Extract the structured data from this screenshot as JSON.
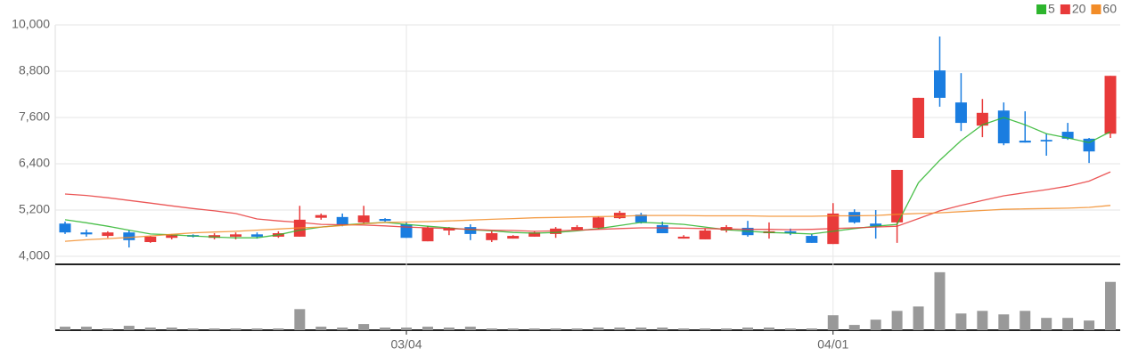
{
  "chart_data": {
    "type": "candlestick",
    "categories": [
      null,
      null,
      null,
      null,
      null,
      null,
      null,
      null,
      null,
      null,
      null,
      null,
      null,
      null,
      null,
      null,
      "03/04",
      null,
      null,
      null,
      null,
      null,
      null,
      null,
      null,
      null,
      null,
      null,
      null,
      null,
      null,
      null,
      null,
      null,
      null,
      null,
      "04/01",
      null,
      null,
      null,
      null,
      null,
      null,
      null,
      null,
      null,
      null,
      null,
      null,
      null
    ],
    "open": [
      4850,
      4620,
      4530,
      4620,
      4370,
      4480,
      4550,
      4480,
      4510,
      4570,
      4510,
      4510,
      5000,
      5020,
      4880,
      4970,
      4830,
      4390,
      4670,
      4760,
      4420,
      4460,
      4510,
      4580,
      4690,
      4740,
      4990,
      5080,
      4810,
      4460,
      4440,
      4670,
      4740,
      4600,
      4650,
      4530,
      4320,
      5150,
      4850,
      4880,
      7070,
      8820,
      7990,
      7390,
      7780,
      7000,
      7020,
      7230,
      7050,
      7180
    ],
    "high": [
      4900,
      4690,
      4650,
      4670,
      4530,
      4580,
      4570,
      4600,
      4620,
      4620,
      4650,
      5310,
      5110,
      5110,
      5310,
      4990,
      4880,
      4790,
      4760,
      4830,
      4650,
      4550,
      4650,
      4760,
      4810,
      5040,
      5180,
      5130,
      4900,
      4550,
      4720,
      4810,
      4920,
      4880,
      4720,
      4580,
      5380,
      5220,
      5200,
      6240,
      8110,
      9700,
      8750,
      8080,
      7990,
      7760,
      7180,
      7460,
      7070,
      8680
    ],
    "low": [
      4580,
      4510,
      4480,
      4230,
      4350,
      4440,
      4490,
      4440,
      4440,
      4460,
      4480,
      4510,
      4950,
      4780,
      4850,
      4900,
      4480,
      4390,
      4550,
      4420,
      4370,
      4460,
      4510,
      4480,
      4690,
      4710,
      4970,
      4850,
      4600,
      4460,
      4440,
      4620,
      4510,
      4460,
      4550,
      4350,
      4320,
      4850,
      4460,
      4350,
      7070,
      7880,
      7250,
      7090,
      6880,
      6950,
      6610,
      7020,
      6420,
      7070
    ],
    "close": [
      4620,
      4570,
      4620,
      4420,
      4510,
      4550,
      4510,
      4550,
      4570,
      4510,
      4600,
      4950,
      5070,
      4830,
      5060,
      4920,
      4480,
      4740,
      4740,
      4580,
      4600,
      4530,
      4620,
      4720,
      4760,
      5010,
      5130,
      4880,
      4600,
      4510,
      4670,
      4760,
      4550,
      4650,
      4600,
      4350,
      5110,
      4880,
      4780,
      6240,
      8110,
      8110,
      7460,
      7720,
      6930,
      6950,
      6980,
      7050,
      6720,
      8680
    ],
    "up_color": "#e83a3a",
    "down_color": "#1a7de0",
    "ylim": [
      3800,
      10000
    ],
    "yticks": [
      {
        "value": 4000,
        "label": "4,000"
      },
      {
        "value": 5200,
        "label": "5,200"
      },
      {
        "value": 6400,
        "label": "6,400"
      },
      {
        "value": 7600,
        "label": "7,600"
      },
      {
        "value": 8800,
        "label": "8,800"
      },
      {
        "value": 10000,
        "label": "10,000"
      }
    ],
    "grid": true,
    "legend": "top-right",
    "series": [
      {
        "name": "5",
        "color": "#2db52d",
        "values": [
          4950,
          4870,
          4780,
          4680,
          4580,
          4560,
          4530,
          4500,
          4480,
          4480,
          4560,
          4680,
          4760,
          4810,
          4850,
          4880,
          4830,
          4780,
          4740,
          4690,
          4660,
          4620,
          4600,
          4620,
          4660,
          4720,
          4800,
          4880,
          4860,
          4830,
          4760,
          4690,
          4650,
          4620,
          4600,
          4580,
          4650,
          4720,
          4780,
          4830,
          5910,
          6490,
          7000,
          7410,
          7600,
          7410,
          7180,
          7070,
          6950,
          7230
        ]
      },
      {
        "name": "20",
        "color": "#e83a3a",
        "values": [
          5615,
          5580,
          5520,
          5450,
          5380,
          5310,
          5240,
          5180,
          5110,
          4970,
          4920,
          4880,
          4830,
          4820,
          4810,
          4790,
          4760,
          4740,
          4720,
          4700,
          4680,
          4670,
          4650,
          4660,
          4680,
          4700,
          4720,
          4740,
          4740,
          4730,
          4720,
          4710,
          4700,
          4700,
          4690,
          4700,
          4720,
          4740,
          4760,
          4780,
          4980,
          5180,
          5320,
          5450,
          5570,
          5650,
          5730,
          5820,
          5950,
          6190
        ]
      },
      {
        "name": "60",
        "color": "#f28c28",
        "values": [
          4390,
          4430,
          4460,
          4490,
          4530,
          4570,
          4610,
          4630,
          4650,
          4680,
          4710,
          4740,
          4760,
          4800,
          4840,
          4880,
          4890,
          4900,
          4920,
          4940,
          4960,
          4980,
          5000,
          5010,
          5020,
          5030,
          5040,
          5060,
          5060,
          5060,
          5050,
          5050,
          5050,
          5040,
          5040,
          5040,
          5050,
          5050,
          5060,
          5090,
          5110,
          5130,
          5160,
          5190,
          5220,
          5230,
          5240,
          5250,
          5270,
          5320
        ]
      }
    ],
    "volume": {
      "color": "#999999",
      "ylim": [
        0,
        75
      ],
      "values": [
        4,
        4,
        2,
        5,
        3,
        3,
        2,
        2,
        2,
        2,
        2,
        24,
        4,
        3,
        7,
        3,
        3,
        4,
        3,
        4,
        2,
        2,
        2,
        2,
        2,
        3,
        3,
        3,
        3,
        2,
        2,
        2,
        3,
        3,
        2,
        2,
        17,
        6,
        12,
        22,
        27,
        66,
        19,
        22,
        18,
        22,
        14,
        14,
        11,
        55
      ]
    }
  }
}
